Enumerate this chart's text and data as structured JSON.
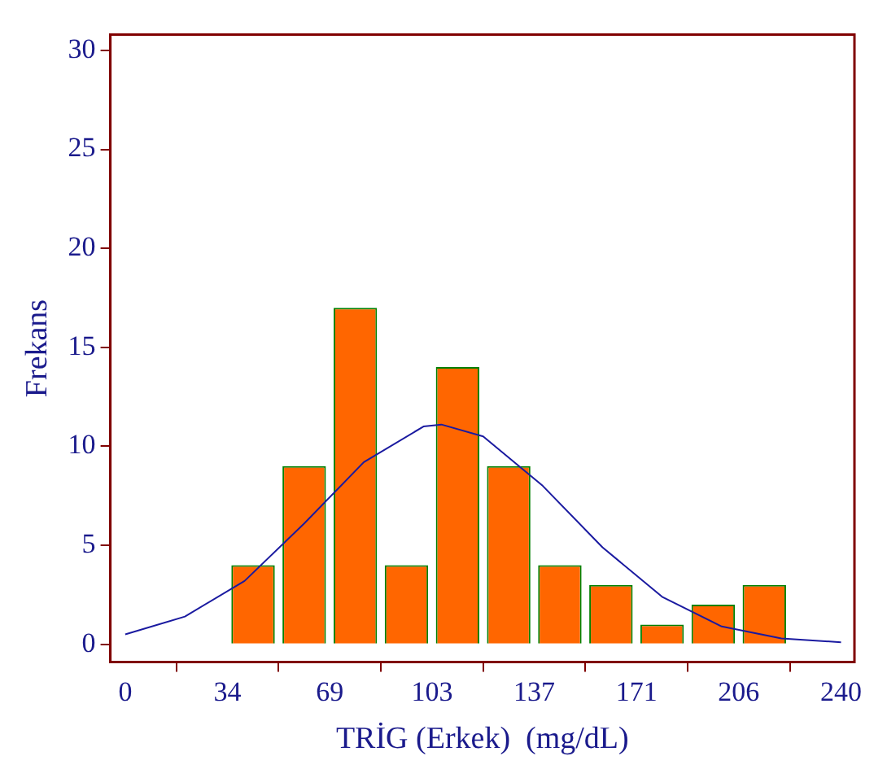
{
  "chart_data": {
    "type": "histogram",
    "xlabel": "TRİG (Erkek)  (mg/dL)",
    "ylabel": "Frekans",
    "bins": [
      34.29,
      51.43,
      68.57,
      85.71,
      102.86,
      120,
      137.14,
      154.29,
      171.43,
      188.57,
      205.71,
      222.86
    ],
    "values": [
      4,
      9,
      17,
      4,
      14,
      9,
      4,
      3,
      1,
      2,
      3
    ],
    "color": "#ff6600",
    "series": [
      {
        "type": "line",
        "color": "#1a1aa0",
        "x": [
          0,
          20,
          40,
          60,
          80,
          100,
          106,
          120,
          140,
          160,
          180,
          200,
          220,
          240
        ],
        "values": [
          0.5,
          1.4,
          3.2,
          6.1,
          9.2,
          11,
          11.1,
          10.5,
          8,
          4.9,
          2.4,
          0.9,
          0.3,
          0.1
        ]
      }
    ],
    "xlim": [
      -5,
      244.5
    ],
    "ylim": [
      -0.9,
      30.8
    ],
    "xticks": [
      0,
      {
        "value": 34.29,
        "label": "34"
      },
      {
        "value": 68.57,
        "label": "69"
      },
      {
        "value": 102.86,
        "label": "103"
      },
      {
        "value": 137.14,
        "label": "137"
      },
      {
        "value": 171.43,
        "label": "171"
      },
      {
        "value": 205.71,
        "label": "206"
      },
      240
    ],
    "yticks": [
      0,
      5,
      10,
      15,
      20,
      25,
      30
    ],
    "grid": false,
    "legend": false,
    "marker": "none",
    "line_style": "solid"
  }
}
